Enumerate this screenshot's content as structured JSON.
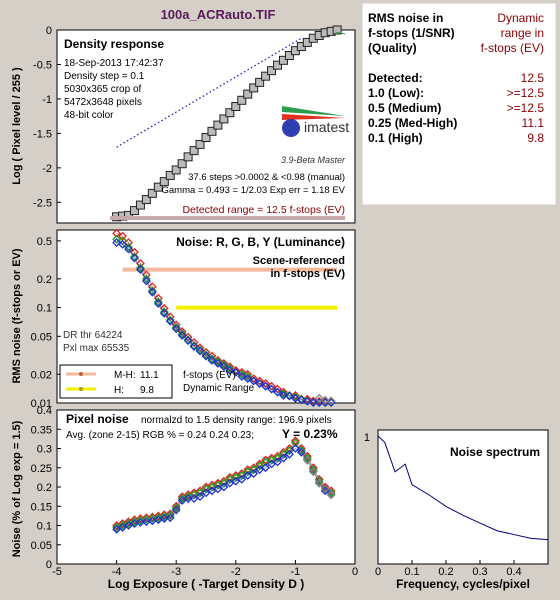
{
  "figure": {
    "title": "100a_ACRauto.TIF",
    "title_color": "#5a1a5a",
    "background": "#d4d0c8"
  },
  "density_panel": {
    "heading": "Density response",
    "info_lines": [
      "18-Sep-2013 17:42:37",
      "Density step = 0.1",
      "5030x365 crop of",
      "5472x3648 pixels",
      "48-bit color"
    ],
    "stats_lines": [
      "37.6 steps >0.0002 & <0.98 (manual)",
      "Gamma = 0.493 = 1/2.03  Exp err = 1.18 EV"
    ],
    "detected_range": "Detected range = 12.5 f-stops (EV)",
    "logo_text": "imatest",
    "logo_sub": "3.9-Beta  Master",
    "ylabel": "Log ( Pixel level / 255 )",
    "yticks": [
      "0",
      "-0.5",
      "-1",
      "-1.5",
      "-2",
      "-2.5"
    ]
  },
  "noise_panel": {
    "heading": "Noise: R, G, B, Y (Luminance)",
    "scene_ref": [
      "Scene-referenced",
      "in f-stops (EV)"
    ],
    "dr_lines": [
      "DR thr 64224",
      "Pxl max 65535"
    ],
    "legend": [
      {
        "label": "M-H:",
        "value": "11.1",
        "color": "#f4b89a"
      },
      {
        "label": "H:",
        "value": "9.8",
        "color": "#f0f000"
      }
    ],
    "legend_note": [
      "f-stops (EV)",
      "Dynamic Range"
    ],
    "ylabel": "RMS noise (f-stops or EV)",
    "yticks": [
      "0.5",
      "0.2",
      "0.1",
      "0.05",
      "0.02",
      "0.01"
    ]
  },
  "pixel_panel": {
    "heading": "Pixel noise",
    "norm_text": "normalzd to 1.5 density range: 196.9 pixels",
    "avg_text": "Avg. (zone 2-15) RGB % = 0.24  0.24  0.23;",
    "y_text": "Y = 0.23%",
    "ylabel": "Noise (% of Log exp = 1.5)",
    "xlabel": "Log Exposure ( -Target Density D )",
    "yticks": [
      "0.4",
      "0.35",
      "0.3",
      "0.25",
      "0.2",
      "0.15",
      "0.1",
      "0.05",
      "0"
    ],
    "xticks": [
      "-5",
      "-4",
      "-3",
      "-2",
      "-1",
      "0"
    ]
  },
  "spectrum_panel": {
    "heading": "Noise spectrum",
    "xlabel": "Frequency, cycles/pixel",
    "ytick": "1",
    "xticks": [
      "0",
      "0.1",
      "0.2",
      "0.3",
      "0.4"
    ]
  },
  "table": {
    "header_left": [
      "RMS noise in",
      "f-stops (1/SNR)",
      "(Quality)"
    ],
    "header_right": [
      "Dynamic",
      "range in",
      "f-stops (EV)"
    ],
    "header_right_color": "#8b0000",
    "rows": [
      {
        "label": "Detected:",
        "value": "12.5"
      },
      {
        "label": "1.0   (Low):",
        "value": ">=12.5"
      },
      {
        "label": "0.5   (Medium)",
        "value": ">=12.5"
      },
      {
        "label": "0.25 (Med-High)",
        "value": "11.1"
      },
      {
        "label": "0.1   (High)",
        "value": "9.8"
      }
    ]
  },
  "chart_data": [
    {
      "type": "line",
      "title": "Density response",
      "ylabel": "Log ( Pixel level / 255 )",
      "xlim": [
        -5,
        0
      ],
      "ylim": [
        -2.8,
        0
      ],
      "series": [
        {
          "marker": "square",
          "color": "#555555",
          "x": [
            -4.0,
            -3.9,
            -3.8,
            -3.7,
            -3.6,
            -3.5,
            -3.4,
            -3.3,
            -3.2,
            -3.1,
            -3.0,
            -2.9,
            -2.8,
            -2.7,
            -2.6,
            -2.5,
            -2.4,
            -2.3,
            -2.2,
            -2.1,
            -2.0,
            -1.9,
            -1.8,
            -1.7,
            -1.6,
            -1.5,
            -1.4,
            -1.3,
            -1.2,
            -1.1,
            -1.0,
            -0.9,
            -0.8,
            -0.7,
            -0.6,
            -0.5,
            -0.4,
            -0.3
          ],
          "y": [
            -2.71,
            -2.7,
            -2.69,
            -2.62,
            -2.54,
            -2.46,
            -2.37,
            -2.28,
            -2.2,
            -2.11,
            -2.03,
            -1.94,
            -1.84,
            -1.75,
            -1.66,
            -1.56,
            -1.47,
            -1.38,
            -1.29,
            -1.2,
            -1.11,
            -1.02,
            -0.93,
            -0.84,
            -0.76,
            -0.67,
            -0.59,
            -0.51,
            -0.44,
            -0.37,
            -0.3,
            -0.24,
            -0.18,
            -0.12,
            -0.08,
            -0.04,
            -0.02,
            0.0
          ]
        },
        {
          "style": "dotted",
          "color": "#2020c0",
          "x": [
            -4.0,
            -0.9
          ],
          "y": [
            -1.7,
            -0.12
          ]
        }
      ]
    },
    {
      "type": "scatter",
      "title": "Noise: R, G, B, Y (Luminance)",
      "ylabel": "RMS noise (f-stops or EV)",
      "yscale": "log",
      "xlim": [
        -5,
        0
      ],
      "ylim": [
        0.01,
        0.65
      ],
      "series": [
        {
          "name": "R",
          "color": "#e02020",
          "x": [
            -4.0,
            -3.9,
            -3.8,
            -3.7,
            -3.6,
            -3.5,
            -3.4,
            -3.3,
            -3.2,
            -3.1,
            -3.0,
            -2.9,
            -2.8,
            -2.7,
            -2.6,
            -2.5,
            -2.4,
            -2.3,
            -2.2,
            -2.1,
            -2.0,
            -1.9,
            -1.8,
            -1.7,
            -1.6,
            -1.5,
            -1.4,
            -1.3,
            -1.2,
            -1.1,
            -1.0,
            -0.9,
            -0.8,
            -0.7,
            -0.6,
            -0.5,
            -0.4
          ],
          "y": [
            0.6,
            0.56,
            0.48,
            0.38,
            0.29,
            0.22,
            0.165,
            0.125,
            0.098,
            0.08,
            0.066,
            0.056,
            0.049,
            0.043,
            0.038,
            0.034,
            0.031,
            0.028,
            0.026,
            0.024,
            0.022,
            0.021,
            0.02,
            0.018,
            0.017,
            0.016,
            0.015,
            0.014,
            0.013,
            0.012,
            0.012,
            0.011,
            0.011,
            0.0105,
            0.0104,
            0.0103,
            0.0102
          ]
        },
        {
          "name": "G",
          "color": "#20a020",
          "x": [
            -4.0,
            -3.9,
            -3.8,
            -3.7,
            -3.6,
            -3.5,
            -3.4,
            -3.3,
            -3.2,
            -3.1,
            -3.0,
            -2.9,
            -2.8,
            -2.7,
            -2.6,
            -2.5,
            -2.4,
            -2.3,
            -2.2,
            -2.1,
            -2.0,
            -1.9,
            -1.8,
            -1.7,
            -1.6,
            -1.5,
            -1.4,
            -1.3,
            -1.2,
            -1.1,
            -1.0,
            -0.9,
            -0.8,
            -0.7,
            -0.6,
            -0.5,
            -0.4
          ],
          "y": [
            0.52,
            0.5,
            0.43,
            0.34,
            0.26,
            0.2,
            0.15,
            0.115,
            0.09,
            0.074,
            0.062,
            0.053,
            0.046,
            0.04,
            0.036,
            0.032,
            0.029,
            0.027,
            0.025,
            0.023,
            0.021,
            0.02,
            0.019,
            0.017,
            0.016,
            0.015,
            0.014,
            0.013,
            0.0125,
            0.012,
            0.0115,
            0.011,
            0.0105,
            0.0102,
            0.0101,
            0.0101,
            0.0101
          ]
        },
        {
          "name": "B",
          "color": "#2030d0",
          "x": [
            -4.0,
            -3.9,
            -3.8,
            -3.7,
            -3.6,
            -3.5,
            -3.4,
            -3.3,
            -3.2,
            -3.1,
            -3.0,
            -2.9,
            -2.8,
            -2.7,
            -2.6,
            -2.5,
            -2.4,
            -2.3,
            -2.2,
            -2.1,
            -2.0,
            -1.9,
            -1.8,
            -1.7,
            -1.6,
            -1.5,
            -1.4,
            -1.3,
            -1.2,
            -1.1,
            -1.0,
            -0.9,
            -0.8,
            -0.7,
            -0.6,
            -0.5,
            -0.4
          ],
          "y": [
            0.48,
            0.46,
            0.41,
            0.33,
            0.25,
            0.19,
            0.145,
            0.11,
            0.087,
            0.072,
            0.06,
            0.051,
            0.045,
            0.039,
            0.035,
            0.031,
            0.028,
            0.026,
            0.024,
            0.022,
            0.021,
            0.019,
            0.018,
            0.017,
            0.016,
            0.015,
            0.014,
            0.013,
            0.012,
            0.0118,
            0.0112,
            0.0108,
            0.0104,
            0.0101,
            0.0101,
            0.0101,
            0.0101
          ]
        },
        {
          "name": "Y",
          "color": "#808080",
          "x": [
            -0.6,
            -0.5,
            -0.4
          ],
          "y": [
            0.0112,
            0.0107,
            0.0105
          ]
        },
        {
          "name": "M-H: 11.1",
          "type": "hline",
          "color": "#f4b89a",
          "x": [
            -3.9,
            -0.3
          ],
          "y": [
            0.25,
            0.25
          ]
        },
        {
          "name": "H: 9.8",
          "type": "hline",
          "color": "#f0f000",
          "x": [
            -3.0,
            -0.3
          ],
          "y": [
            0.1,
            0.1
          ]
        }
      ]
    },
    {
      "type": "scatter",
      "title": "Pixel noise",
      "xlabel": "Log Exposure ( -Target Density D )",
      "ylabel": "Noise (% of Log exp = 1.5)",
      "xlim": [
        -5,
        0
      ],
      "ylim": [
        0,
        0.4
      ],
      "series": [
        {
          "name": "R",
          "color": "#e02020",
          "x": [
            -4.0,
            -3.9,
            -3.8,
            -3.7,
            -3.6,
            -3.5,
            -3.4,
            -3.3,
            -3.2,
            -3.1,
            -3.0,
            -2.9,
            -2.8,
            -2.7,
            -2.6,
            -2.5,
            -2.4,
            -2.3,
            -2.2,
            -2.1,
            -2.0,
            -1.9,
            -1.8,
            -1.7,
            -1.6,
            -1.5,
            -1.4,
            -1.3,
            -1.2,
            -1.1,
            -1.0,
            -0.9,
            -0.8,
            -0.7,
            -0.6,
            -0.5,
            -0.4
          ],
          "y": [
            0.1,
            0.105,
            0.11,
            0.115,
            0.118,
            0.12,
            0.122,
            0.125,
            0.128,
            0.13,
            0.15,
            0.175,
            0.18,
            0.185,
            0.19,
            0.2,
            0.205,
            0.21,
            0.215,
            0.225,
            0.23,
            0.235,
            0.245,
            0.25,
            0.26,
            0.27,
            0.275,
            0.28,
            0.29,
            0.3,
            0.32,
            0.3,
            0.28,
            0.25,
            0.22,
            0.2,
            0.19
          ]
        },
        {
          "name": "G",
          "color": "#20a020",
          "x": [
            -4.0,
            -3.9,
            -3.8,
            -3.7,
            -3.6,
            -3.5,
            -3.4,
            -3.3,
            -3.2,
            -3.1,
            -3.0,
            -2.9,
            -2.8,
            -2.7,
            -2.6,
            -2.5,
            -2.4,
            -2.3,
            -2.2,
            -2.1,
            -2.0,
            -1.9,
            -1.8,
            -1.7,
            -1.6,
            -1.5,
            -1.4,
            -1.3,
            -1.2,
            -1.1,
            -1.0,
            -0.9,
            -0.8,
            -0.7,
            -0.6,
            -0.5,
            -0.4
          ],
          "y": [
            0.095,
            0.1,
            0.105,
            0.11,
            0.113,
            0.116,
            0.118,
            0.12,
            0.123,
            0.126,
            0.145,
            0.17,
            0.175,
            0.18,
            0.185,
            0.195,
            0.2,
            0.205,
            0.21,
            0.22,
            0.225,
            0.23,
            0.24,
            0.245,
            0.255,
            0.265,
            0.27,
            0.275,
            0.285,
            0.295,
            0.315,
            0.295,
            0.275,
            0.245,
            0.215,
            0.195,
            0.185
          ]
        },
        {
          "name": "B",
          "color": "#2030d0",
          "x": [
            -4.0,
            -3.9,
            -3.8,
            -3.7,
            -3.6,
            -3.5,
            -3.4,
            -3.3,
            -3.2,
            -3.1,
            -3.0,
            -2.9,
            -2.8,
            -2.7,
            -2.6,
            -2.5,
            -2.4,
            -2.3,
            -2.2,
            -2.1,
            -2.0,
            -1.9,
            -1.8,
            -1.7,
            -1.6,
            -1.5,
            -1.4,
            -1.3,
            -1.2,
            -1.1,
            -1.0,
            -0.9,
            -0.8,
            -0.7,
            -0.6,
            -0.5,
            -0.4
          ],
          "y": [
            0.09,
            0.095,
            0.1,
            0.105,
            0.108,
            0.11,
            0.112,
            0.115,
            0.118,
            0.12,
            0.14,
            0.165,
            0.17,
            0.17,
            0.175,
            0.185,
            0.19,
            0.195,
            0.2,
            0.21,
            0.215,
            0.22,
            0.23,
            0.235,
            0.245,
            0.25,
            0.26,
            0.265,
            0.275,
            0.285,
            0.3,
            0.29,
            0.27,
            0.24,
            0.21,
            0.19,
            0.18
          ]
        },
        {
          "name": "Y",
          "color": "#808080",
          "x": [
            -0.8,
            -0.7,
            -0.6,
            -0.5,
            -0.4
          ],
          "y": [
            0.27,
            0.24,
            0.21,
            0.195,
            0.18
          ]
        }
      ]
    },
    {
      "type": "line",
      "title": "Noise spectrum",
      "xlabel": "Frequency, cycles/pixel",
      "xlim": [
        0,
        0.5
      ],
      "ylim": [
        0,
        1
      ],
      "series": [
        {
          "color": "#000080",
          "x": [
            0.0,
            0.02,
            0.05,
            0.08,
            0.1,
            0.15,
            0.2,
            0.25,
            0.3,
            0.35,
            0.4,
            0.45,
            0.5
          ],
          "y": [
            1.0,
            0.95,
            0.72,
            0.78,
            0.62,
            0.54,
            0.45,
            0.38,
            0.32,
            0.26,
            0.23,
            0.2,
            0.19
          ]
        }
      ]
    }
  ]
}
